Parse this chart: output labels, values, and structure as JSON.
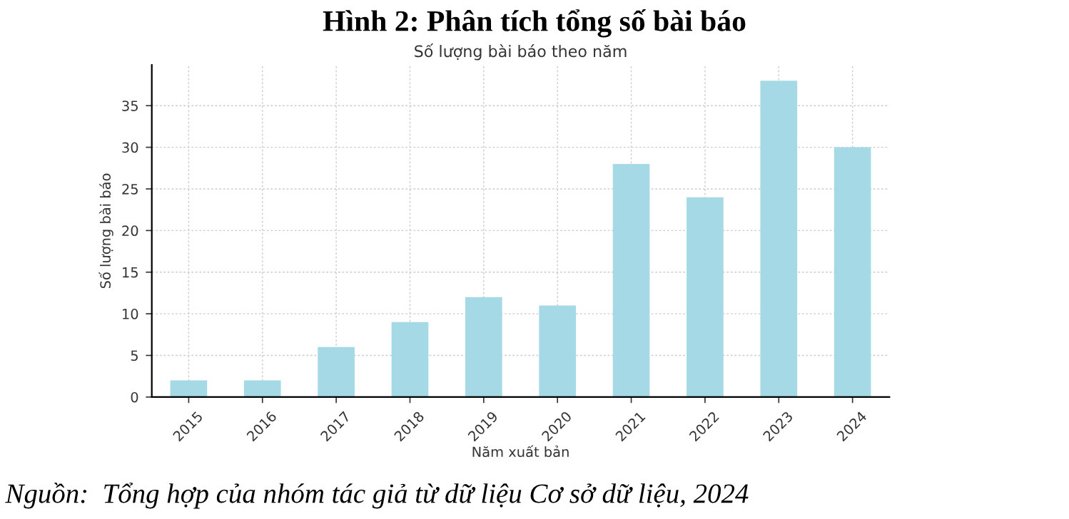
{
  "chart_data": {
    "type": "bar",
    "title": "Hình 2: Phân tích tổng số bài báo",
    "subtitle": "Số lượng bài báo theo năm",
    "xlabel": "Năm xuất bản",
    "ylabel": "Số lượng bài báo",
    "categories": [
      "2015",
      "2016",
      "2017",
      "2018",
      "2019",
      "2020",
      "2021",
      "2022",
      "2023",
      "2024"
    ],
    "values": [
      2,
      2,
      6,
      9,
      12,
      11,
      28,
      24,
      38,
      30
    ],
    "color": "#a6d9e6",
    "ylim": [
      0,
      39.9
    ],
    "yticks": [
      0,
      5,
      10,
      15,
      20,
      25,
      30,
      35
    ],
    "grid": true,
    "legend": false,
    "annotations": [
      "Nguồn:  Tổng hợp của nhóm tác giả từ dữ liệu Cơ sở dữ liệu, 2024"
    ]
  }
}
